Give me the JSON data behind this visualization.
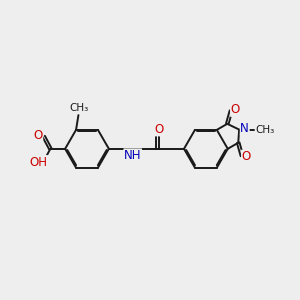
{
  "bg_color": "#eeeeee",
  "bond_color": "#1a1a1a",
  "bond_width": 1.4,
  "dbo": 0.055,
  "O_color": "#cc0000",
  "N_color": "#0000bb",
  "C_color": "#1a1a1a",
  "font_size": 8.5,
  "font_size_small": 7.5,
  "xlim": [
    -1.0,
    11.5
  ],
  "ylim": [
    1.5,
    8.5
  ]
}
